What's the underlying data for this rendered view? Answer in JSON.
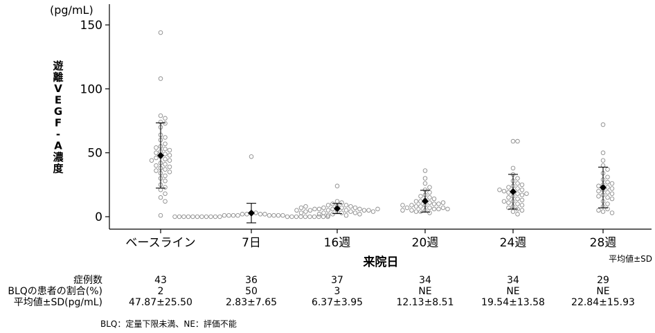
{
  "chart_data": {
    "type": "scatter",
    "ylabel": "遊離VEGF-A濃度",
    "yunit": "(pg/mL)",
    "xlabel": "来院日",
    "legend_note": "平均値±SD",
    "categories": [
      "ベースライン",
      "7日",
      "16週",
      "20週",
      "24週",
      "28週"
    ],
    "ylim": [
      0,
      150
    ],
    "yticks": [
      0,
      50,
      100,
      150
    ],
    "mean": [
      47.87,
      2.83,
      6.37,
      12.13,
      19.54,
      22.84
    ],
    "sd": [
      25.5,
      7.65,
      3.95,
      8.51,
      13.58,
      15.93
    ],
    "points": [
      [
        144,
        108,
        79,
        77,
        74,
        73,
        70,
        64,
        60,
        57,
        55,
        54,
        53,
        52,
        51,
        50,
        49,
        48,
        47,
        46,
        45,
        44,
        42,
        41,
        40,
        39,
        38,
        37,
        36,
        35,
        34,
        32,
        30,
        28,
        25,
        23,
        21,
        18,
        15,
        12,
        1,
        62,
        44
      ],
      [
        47,
        3,
        3,
        2,
        2,
        2,
        2,
        1,
        1,
        1,
        1,
        1,
        1,
        1,
        1,
        0,
        0,
        0,
        0,
        0,
        0,
        0,
        0,
        0,
        0,
        0,
        0,
        0,
        0,
        0,
        0,
        0,
        0,
        0,
        0,
        0
      ],
      [
        24,
        12,
        11,
        10,
        9,
        9,
        8,
        8,
        7,
        7,
        7,
        6,
        6,
        6,
        6,
        5,
        5,
        5,
        5,
        5,
        4,
        4,
        4,
        4,
        3,
        3,
        3,
        3,
        2,
        2,
        2,
        1,
        1,
        6,
        5,
        7,
        8
      ],
      [
        36,
        30,
        26,
        23,
        21,
        19,
        17,
        16,
        15,
        14,
        13,
        12,
        12,
        11,
        10,
        10,
        9,
        9,
        8,
        8,
        7,
        7,
        7,
        6,
        6,
        6,
        5,
        5,
        5,
        4,
        4,
        3,
        11,
        9
      ],
      [
        59,
        59,
        38,
        33,
        30,
        28,
        26,
        24,
        23,
        22,
        21,
        20,
        20,
        19,
        18,
        17,
        16,
        15,
        14,
        13,
        12,
        11,
        10,
        9,
        8,
        7,
        6,
        5,
        4,
        2,
        18,
        21,
        25,
        12
      ],
      [
        72,
        50,
        44,
        40,
        37,
        34,
        31,
        29,
        27,
        25,
        24,
        23,
        22,
        21,
        20,
        19,
        18,
        17,
        16,
        15,
        14,
        12,
        10,
        8,
        6,
        5,
        4,
        3,
        26
      ]
    ]
  },
  "table": {
    "rows": [
      {
        "label": "症例数",
        "values": [
          "43",
          "36",
          "37",
          "34",
          "34",
          "29"
        ]
      },
      {
        "label": "BLQの患者の割合(%)",
        "values": [
          "2",
          "50",
          "3",
          "NE",
          "NE",
          "NE"
        ]
      },
      {
        "label": "平均値±SD(pg/mL)",
        "values": [
          "47.87±25.50",
          "2.83±7.65",
          "6.37±3.95",
          "12.13±8.51",
          "19.54±13.58",
          "22.84±15.93"
        ]
      }
    ]
  },
  "footnote": "BLQ：定量下限未満、NE：評価不能"
}
